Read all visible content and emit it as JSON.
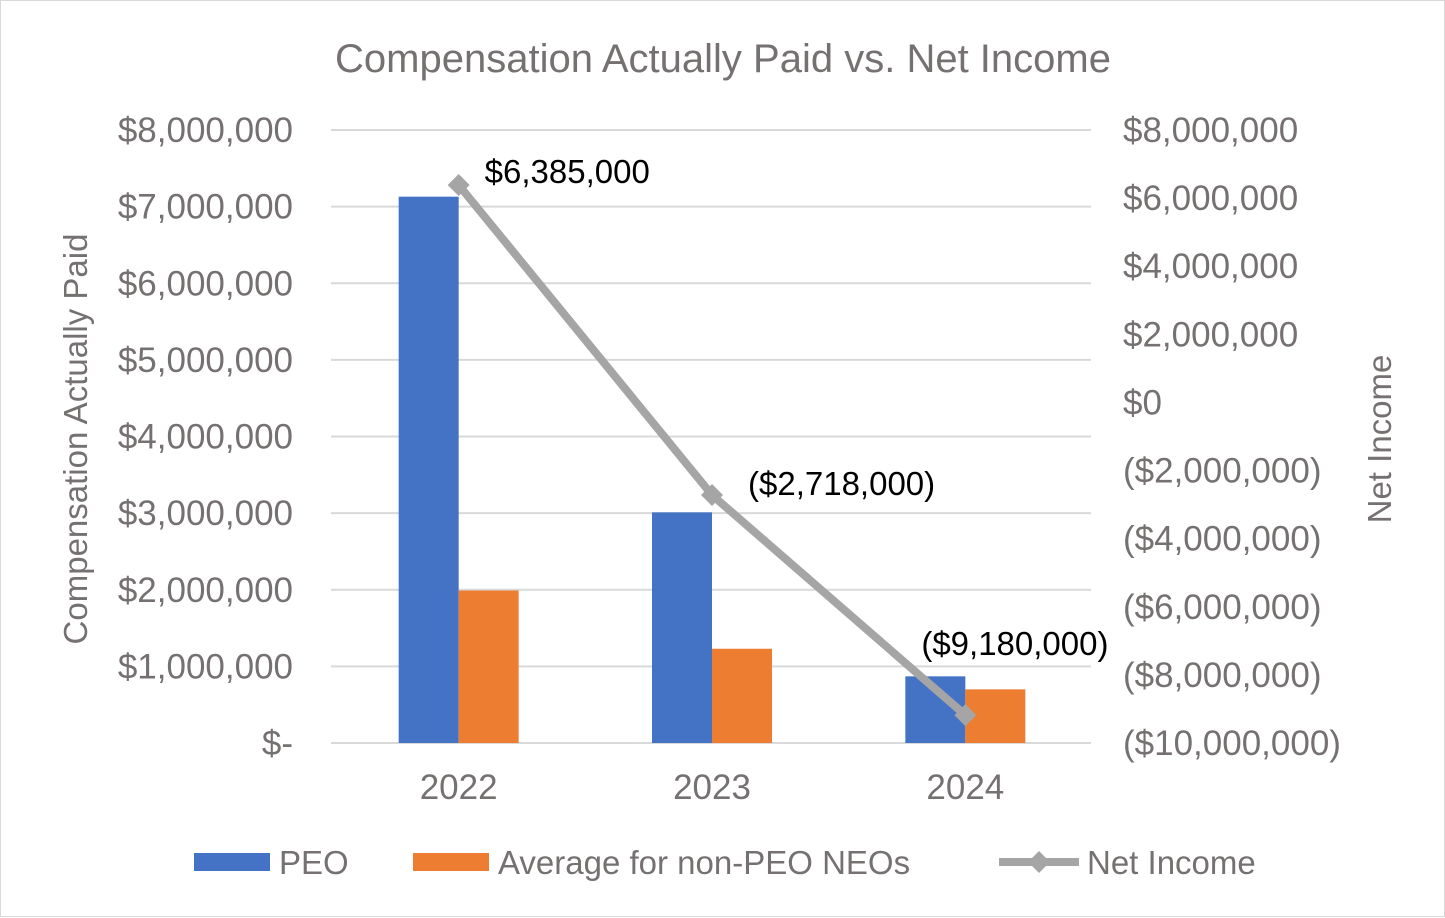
{
  "chart_data": {
    "type": "bar",
    "title": "Compensation Actually Paid vs. Net Income",
    "categories": [
      "2022",
      "2023",
      "2024"
    ],
    "series": [
      {
        "name": "PEO",
        "type": "bar",
        "axis": "left",
        "color": "#4472C4",
        "values": [
          7130000,
          3010000,
          870000
        ]
      },
      {
        "name": "Average for non-PEO NEOs",
        "type": "bar",
        "axis": "left",
        "color": "#ED7D31",
        "values": [
          1990000,
          1230000,
          700000
        ]
      },
      {
        "name": "Net Income",
        "type": "line",
        "axis": "right",
        "color": "#A5A5A5",
        "marker": "diamond",
        "values": [
          6385000,
          -2718000,
          -9180000
        ]
      }
    ],
    "data_labels": [
      "$6,385,000",
      "($2,718,000)",
      "($9,180,000)"
    ],
    "left_axis": {
      "label": "Compensation Actually Paid",
      "ylim": [
        0,
        8000000
      ],
      "ticks": [
        "$-",
        "$1,000,000",
        "$2,000,000",
        "$3,000,000",
        "$4,000,000",
        "$5,000,000",
        "$6,000,000",
        "$7,000,000",
        "$8,000,000"
      ]
    },
    "right_axis": {
      "label": "Net Income",
      "ylim": [
        -10000000,
        8000000
      ],
      "ticks": [
        "($10,000,000)",
        "($8,000,000)",
        "($6,000,000)",
        "($4,000,000)",
        "($2,000,000)",
        "$0",
        "$2,000,000",
        "$4,000,000",
        "$6,000,000",
        "$8,000,000"
      ]
    },
    "grid": true,
    "legend_position": "bottom",
    "colors": {
      "grid": "#D9D9D9",
      "text": "#767171"
    }
  }
}
